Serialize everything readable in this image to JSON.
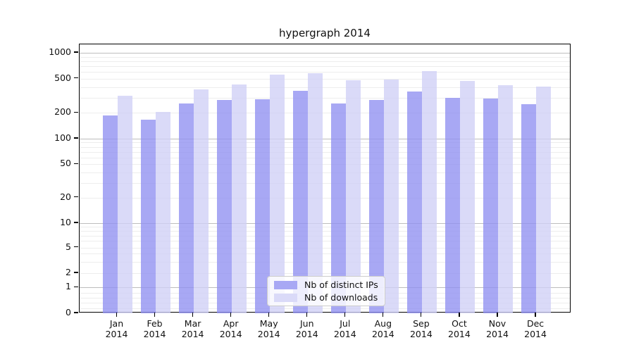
{
  "title": "hypergraph 2014",
  "chart_data": {
    "type": "bar",
    "title": "hypergraph 2014",
    "xlabel": "",
    "ylabel": "",
    "yscale": "symlog",
    "ylim": [
      0,
      1250
    ],
    "grid": true,
    "legend_position": "lower center",
    "categories": [
      "Jan 2014",
      "Feb 2014",
      "Mar 2014",
      "Apr 2014",
      "May 2014",
      "Jun 2014",
      "Jul 2014",
      "Aug 2014",
      "Sep 2014",
      "Oct 2014",
      "Nov 2014",
      "Dec 2014"
    ],
    "x_tick_lines": [
      [
        "Jan",
        "2014"
      ],
      [
        "Feb",
        "2014"
      ],
      [
        "Mar",
        "2014"
      ],
      [
        "Apr",
        "2014"
      ],
      [
        "May",
        "2014"
      ],
      [
        "Jun",
        "2014"
      ],
      [
        "Jul",
        "2014"
      ],
      [
        "Aug",
        "2014"
      ],
      [
        "Sep",
        "2014"
      ],
      [
        "Oct",
        "2014"
      ],
      [
        "Nov",
        "2014"
      ],
      [
        "Dec",
        "2014"
      ]
    ],
    "yticks": [
      0,
      1,
      2,
      5,
      10,
      20,
      50,
      100,
      200,
      500,
      1000
    ],
    "ytick_labels": [
      "0",
      "1",
      "2",
      "5",
      "10",
      "20",
      "50",
      "100",
      "200",
      "500",
      "1000"
    ],
    "series": [
      {
        "name": "Nb of distinct IPs",
        "color": "#a8a8f4",
        "values": [
          185,
          167,
          257,
          280,
          288,
          360,
          257,
          280,
          352,
          300,
          292,
          250
        ]
      },
      {
        "name": "Nb of downloads",
        "color": "#dadaf8",
        "values": [
          315,
          205,
          375,
          428,
          557,
          575,
          476,
          485,
          609,
          470,
          420,
          406
        ]
      }
    ],
    "colors": {
      "axis": "#000000",
      "grid_major": "#bdbdbd",
      "grid_minor": "#ededed",
      "legend_border": "#cccccc"
    }
  }
}
